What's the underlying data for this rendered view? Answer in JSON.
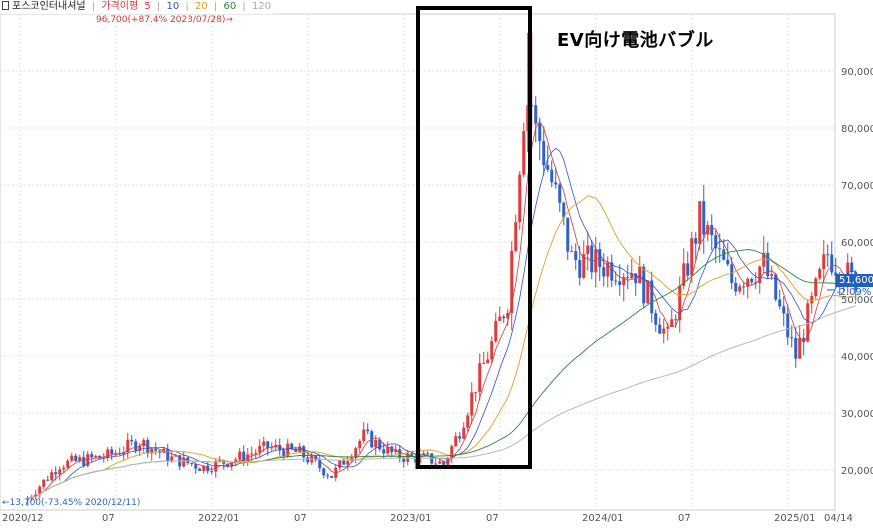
{
  "legend": {
    "name": "포스코인터내셔널",
    "price_ma": "가격이평",
    "ma5": "5",
    "ma10": "10",
    "ma20": "20",
    "ma60": "60",
    "ma120": "120"
  },
  "annotation": "EV向け電池バブル",
  "max_label": "96,700(+87.4% 2023/07/28)",
  "min_label": "13,700(-73.45% 2020/12/11)",
  "price_badge": "51,600",
  "pct_badge": "-2.09%",
  "colors": {
    "up": "#e03a3a",
    "down": "#2f62c8",
    "ma5": "#d03a3a",
    "ma10": "#3050d0",
    "ma20": "#e0a020",
    "ma60": "#2a8a3a",
    "ma120": "#b8b8b8",
    "box": "#000000"
  },
  "chart_data": {
    "type": "candlestick",
    "title": "",
    "xlabel": "",
    "ylabel": "",
    "x_ticks": [
      "2020/12",
      "07",
      "2022/01",
      "07",
      "2023/01",
      "07",
      "2024/01",
      "07",
      "2025/01",
      "04/14"
    ],
    "y_ticks": [
      "20,000",
      "30,000",
      "40,000",
      "50,000",
      "60,000",
      "70,000",
      "80,000",
      "90,000"
    ],
    "y_range": [
      13000,
      100000
    ],
    "grid": true,
    "legend_position": "top-left",
    "close_series": [
      {
        "date": "2020/12",
        "value": 15000
      },
      {
        "date": "2021/02",
        "value": 21000
      },
      {
        "date": "2021/05",
        "value": 22500
      },
      {
        "date": "2021/07",
        "value": 25000
      },
      {
        "date": "2021/09",
        "value": 22000
      },
      {
        "date": "2021/11",
        "value": 20500
      },
      {
        "date": "2022/01",
        "value": 22000
      },
      {
        "date": "2022/03",
        "value": 24000
      },
      {
        "date": "2022/05",
        "value": 23000
      },
      {
        "date": "2022/07",
        "value": 19000
      },
      {
        "date": "2022/09",
        "value": 26000
      },
      {
        "date": "2022/11",
        "value": 22500
      },
      {
        "date": "2023/01",
        "value": 22000
      },
      {
        "date": "2023/02",
        "value": 21000
      },
      {
        "date": "2023/03",
        "value": 27000
      },
      {
        "date": "2023/04",
        "value": 35000
      },
      {
        "date": "2023/05",
        "value": 42000
      },
      {
        "date": "2023/06",
        "value": 50000
      },
      {
        "date": "2023/07",
        "value": 83000
      },
      {
        "date": "2023/08",
        "value": 78000
      },
      {
        "date": "2023/09",
        "value": 68000
      },
      {
        "date": "2023/10",
        "value": 57000
      },
      {
        "date": "2023/12",
        "value": 56000
      },
      {
        "date": "2024/02",
        "value": 55000
      },
      {
        "date": "2024/04",
        "value": 43000
      },
      {
        "date": "2024/06",
        "value": 64000
      },
      {
        "date": "2024/08",
        "value": 53000
      },
      {
        "date": "2024/10",
        "value": 56000
      },
      {
        "date": "2024/12",
        "value": 40000
      },
      {
        "date": "2025/02",
        "value": 58000
      },
      {
        "date": "2025/04",
        "value": 51600
      }
    ],
    "max": {
      "date": "2023/07/28",
      "value": 96700,
      "change_pct": 87.4
    },
    "min": {
      "date": "2020/12/11",
      "value": 13700,
      "change_pct": -73.45
    },
    "last": {
      "value": 51600,
      "change_pct": -2.09
    }
  }
}
